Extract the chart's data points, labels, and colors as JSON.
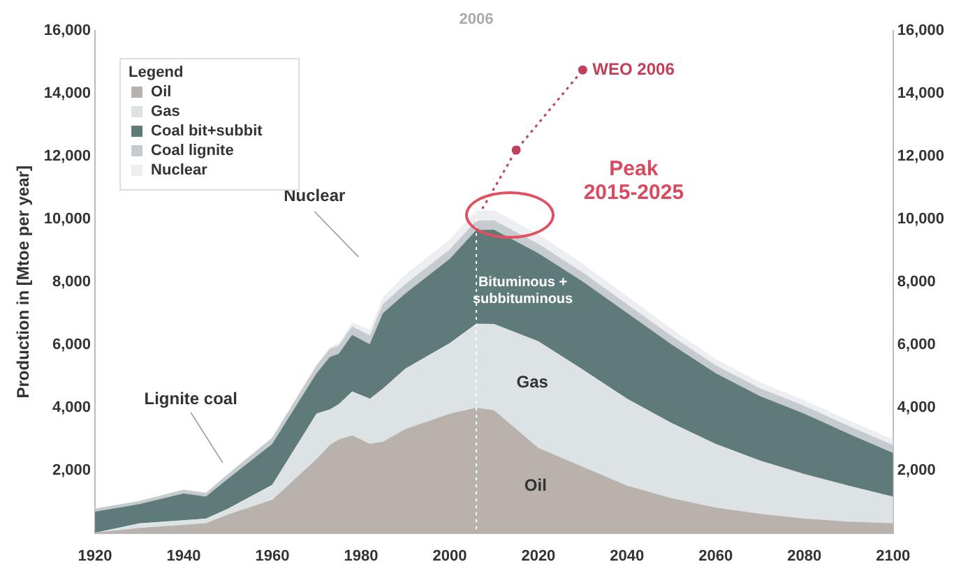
{
  "chart_data": {
    "type": "area",
    "stacked": true,
    "ylabel": "Production in [Mtoe per year]",
    "legend_title": "Legend",
    "legend": "top left",
    "x": [
      1920,
      1930,
      1940,
      1945,
      1950,
      1960,
      1970,
      1973,
      1975,
      1978,
      1982,
      1985,
      1990,
      2000,
      2006,
      2010,
      2020,
      2030,
      2040,
      2050,
      2060,
      2070,
      2080,
      2090,
      2100
    ],
    "xlim": [
      1920,
      2100
    ],
    "xticks": [
      1920,
      1940,
      1960,
      1980,
      2000,
      2020,
      2040,
      2060,
      2080,
      2100
    ],
    "ylim": [
      0,
      16000
    ],
    "yticks": [
      {
        "value": 2000,
        "label": "2,000"
      },
      {
        "value": 4000,
        "label": "4,000"
      },
      {
        "value": 6000,
        "label": "6,000"
      },
      {
        "value": 8000,
        "label": "8,000"
      },
      {
        "value": 10000,
        "label": "10,000"
      },
      {
        "value": 12000,
        "label": "12,000"
      },
      {
        "value": 14000,
        "label": "14,000"
      },
      {
        "value": 16000,
        "label": "16,000"
      }
    ],
    "y2lim": [
      0,
      16000
    ],
    "y2ticks": [
      {
        "value": 2000,
        "label": "2,000"
      },
      {
        "value": 4000,
        "label": "4,000"
      },
      {
        "value": 6000,
        "label": "6,000"
      },
      {
        "value": 8000,
        "label": "8,000"
      },
      {
        "value": 10000,
        "label": "10,000"
      },
      {
        "value": 12000,
        "label": "12,000"
      },
      {
        "value": 14000,
        "label": "14,000"
      },
      {
        "value": 16000,
        "label": "16,000"
      }
    ],
    "series": [
      {
        "name": "Oil",
        "color": "#b9b1ac",
        "values": [
          0,
          150,
          250,
          300,
          580,
          1050,
          2350,
          2800,
          2970,
          3100,
          2830,
          2900,
          3300,
          3790,
          3980,
          3900,
          2700,
          2100,
          1500,
          1100,
          800,
          600,
          450,
          350,
          300
        ]
      },
      {
        "name": "Gas",
        "color": "#dde2e5",
        "values": [
          0,
          150,
          150,
          150,
          190,
          480,
          1450,
          1130,
          1130,
          1400,
          1440,
          1700,
          1930,
          2250,
          2680,
          2750,
          3400,
          3100,
          2770,
          2400,
          2030,
          1700,
          1420,
          1150,
          850
        ]
      },
      {
        "name": "Coal bit+subbit",
        "color": "#5f7b79",
        "values": [
          670,
          610,
          850,
          700,
          950,
          1300,
          1280,
          1670,
          1600,
          1800,
          1730,
          2400,
          2390,
          2680,
          2980,
          3000,
          2800,
          2800,
          2730,
          2500,
          2250,
          2050,
          1920,
          1650,
          1390
        ]
      },
      {
        "name": "Coal lignite",
        "color": "#c6cbd0",
        "values": [
          100,
          100,
          120,
          120,
          150,
          200,
          250,
          260,
          260,
          270,
          280,
          290,
          300,
          300,
          300,
          300,
          300,
          290,
          280,
          270,
          250,
          250,
          250,
          250,
          250
        ]
      },
      {
        "name": "Nuclear",
        "color": "#eceef1",
        "values": [
          0,
          0,
          0,
          0,
          0,
          0,
          20,
          50,
          80,
          120,
          180,
          220,
          300,
          320,
          320,
          320,
          300,
          280,
          250,
          230,
          200,
          190,
          180,
          180,
          180
        ]
      },
      {
        "name": "WEO 2006",
        "type": "line",
        "color": "#c0405a",
        "line_style": "dotted",
        "marker": "circle",
        "x": [
          2005,
          2015,
          2030
        ],
        "values": [
          9750,
          12200,
          14750
        ]
      }
    ],
    "ref_lines": [
      {
        "axis": "x",
        "value": 2006,
        "label": "2006",
        "color": "#ffffff",
        "line_style": "dotted"
      }
    ],
    "annotations": [
      "Nuclear",
      "Lignite coal",
      "Bituminous +\nsubbituminous",
      "Gas",
      "Oil",
      "Peak\n2015-2025"
    ]
  }
}
